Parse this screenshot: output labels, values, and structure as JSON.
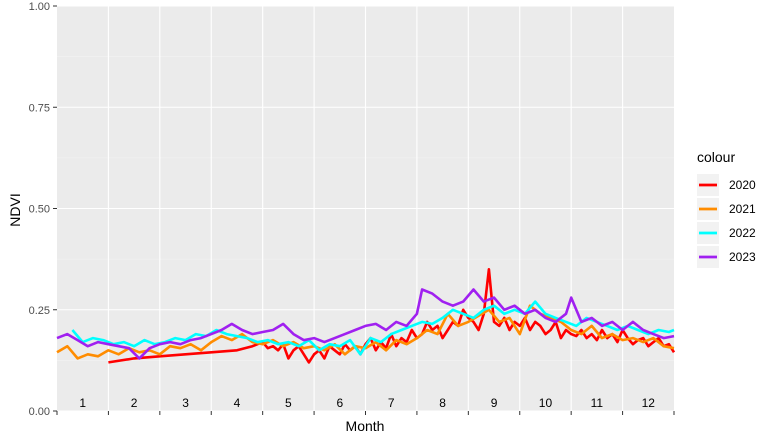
{
  "chart_data": {
    "type": "line",
    "xlabel": "Month",
    "ylabel": "NDVI",
    "xlim": [
      0,
      12
    ],
    "ylim": [
      0,
      1
    ],
    "y_ticks": [
      "0.00",
      "0.25",
      "0.50",
      "0.75",
      "1.00"
    ],
    "y_tick_values": [
      0,
      0.25,
      0.5,
      0.75,
      1.0
    ],
    "month_labels": [
      "1",
      "2",
      "3",
      "4",
      "5",
      "6",
      "7",
      "8",
      "9",
      "10",
      "11",
      "12"
    ],
    "grid": true,
    "legend": {
      "title": "colour",
      "position": "right"
    },
    "series": [
      {
        "name": "2020",
        "color": "#ff0000",
        "x": [
          1.0,
          1.5,
          2.0,
          2.5,
          3.0,
          3.5,
          3.8,
          4.0,
          4.1,
          4.2,
          4.3,
          4.4,
          4.5,
          4.6,
          4.7,
          4.8,
          4.9,
          5.0,
          5.1,
          5.2,
          5.3,
          5.4,
          5.5,
          5.6,
          5.7,
          5.8,
          5.9,
          6.0,
          6.1,
          6.2,
          6.3,
          6.4,
          6.5,
          6.6,
          6.7,
          6.8,
          6.9,
          7.0,
          7.1,
          7.2,
          7.3,
          7.4,
          7.5,
          7.6,
          7.7,
          7.8,
          7.9,
          8.0,
          8.1,
          8.2,
          8.3,
          8.4,
          8.5,
          8.6,
          8.7,
          8.8,
          8.9,
          9.0,
          9.1,
          9.2,
          9.3,
          9.4,
          9.5,
          9.6,
          9.7,
          9.8,
          9.9,
          10.0,
          10.1,
          10.2,
          10.3,
          10.4,
          10.5,
          10.6,
          10.7,
          10.8,
          10.9,
          11.0,
          11.1,
          11.2,
          11.3,
          11.4,
          11.5,
          11.6,
          11.7,
          11.8,
          11.9,
          12.0
        ],
        "y": [
          0.12,
          0.13,
          0.135,
          0.14,
          0.145,
          0.15,
          0.16,
          0.17,
          0.155,
          0.16,
          0.15,
          0.165,
          0.13,
          0.15,
          0.16,
          0.14,
          0.12,
          0.14,
          0.15,
          0.13,
          0.16,
          0.15,
          0.14,
          0.165,
          0.15,
          0.16,
          0.14,
          0.165,
          0.18,
          0.15,
          0.17,
          0.155,
          0.19,
          0.16,
          0.18,
          0.17,
          0.2,
          0.18,
          0.19,
          0.22,
          0.2,
          0.21,
          0.18,
          0.2,
          0.22,
          0.21,
          0.25,
          0.23,
          0.22,
          0.2,
          0.24,
          0.35,
          0.22,
          0.21,
          0.23,
          0.2,
          0.22,
          0.21,
          0.23,
          0.2,
          0.22,
          0.21,
          0.19,
          0.2,
          0.22,
          0.18,
          0.2,
          0.19,
          0.185,
          0.2,
          0.18,
          0.19,
          0.175,
          0.2,
          0.18,
          0.19,
          0.17,
          0.2,
          0.18,
          0.165,
          0.175,
          0.18,
          0.16,
          0.17,
          0.18,
          0.16,
          0.165,
          0.145
        ]
      },
      {
        "name": "2021",
        "color": "#ff8c00",
        "x": [
          0.0,
          0.2,
          0.4,
          0.6,
          0.8,
          1.0,
          1.2,
          1.4,
          1.6,
          1.8,
          2.0,
          2.2,
          2.4,
          2.6,
          2.8,
          3.0,
          3.2,
          3.4,
          3.6,
          3.8,
          4.0,
          4.2,
          4.4,
          4.6,
          4.8,
          5.0,
          5.2,
          5.4,
          5.6,
          5.8,
          6.0,
          6.2,
          6.4,
          6.6,
          6.8,
          7.0,
          7.2,
          7.4,
          7.6,
          7.8,
          8.0,
          8.2,
          8.4,
          8.6,
          8.8,
          9.0,
          9.2,
          9.4,
          9.6,
          9.8,
          10.0,
          10.2,
          10.4,
          10.6,
          10.8,
          11.0,
          11.2,
          11.4,
          11.6,
          11.8,
          12.0
        ],
        "y": [
          0.145,
          0.16,
          0.13,
          0.14,
          0.135,
          0.15,
          0.14,
          0.155,
          0.145,
          0.15,
          0.14,
          0.16,
          0.155,
          0.165,
          0.15,
          0.17,
          0.185,
          0.175,
          0.19,
          0.17,
          0.165,
          0.175,
          0.16,
          0.17,
          0.155,
          0.16,
          0.15,
          0.165,
          0.14,
          0.16,
          0.155,
          0.17,
          0.15,
          0.175,
          0.165,
          0.18,
          0.2,
          0.19,
          0.24,
          0.21,
          0.22,
          0.235,
          0.25,
          0.22,
          0.23,
          0.19,
          0.26,
          0.24,
          0.23,
          0.22,
          0.2,
          0.19,
          0.21,
          0.18,
          0.19,
          0.175,
          0.18,
          0.17,
          0.18,
          0.16,
          0.155
        ]
      },
      {
        "name": "2022",
        "color": "#00ffff",
        "x": [
          0.3,
          0.5,
          0.7,
          0.9,
          1.1,
          1.3,
          1.5,
          1.7,
          1.9,
          2.1,
          2.3,
          2.5,
          2.7,
          2.9,
          3.1,
          3.3,
          3.5,
          3.7,
          3.9,
          4.1,
          4.3,
          4.5,
          4.7,
          4.9,
          5.1,
          5.3,
          5.5,
          5.7,
          5.9,
          6.1,
          6.3,
          6.5,
          6.7,
          6.9,
          7.1,
          7.3,
          7.5,
          7.7,
          7.9,
          8.1,
          8.3,
          8.5,
          8.7,
          8.9,
          9.1,
          9.3,
          9.5,
          9.7,
          9.9,
          10.1,
          10.3,
          10.5,
          10.7,
          10.9,
          11.1,
          11.3,
          11.5,
          11.7,
          11.9,
          12.0
        ],
        "y": [
          0.2,
          0.17,
          0.18,
          0.175,
          0.165,
          0.17,
          0.16,
          0.175,
          0.165,
          0.17,
          0.18,
          0.175,
          0.19,
          0.185,
          0.2,
          0.19,
          0.185,
          0.18,
          0.17,
          0.175,
          0.165,
          0.17,
          0.16,
          0.175,
          0.15,
          0.165,
          0.16,
          0.175,
          0.14,
          0.18,
          0.17,
          0.19,
          0.2,
          0.21,
          0.22,
          0.215,
          0.23,
          0.25,
          0.24,
          0.23,
          0.25,
          0.26,
          0.24,
          0.25,
          0.24,
          0.27,
          0.24,
          0.23,
          0.22,
          0.21,
          0.23,
          0.22,
          0.21,
          0.2,
          0.21,
          0.2,
          0.19,
          0.2,
          0.195,
          0.2
        ]
      },
      {
        "name": "2023",
        "color": "#a020f0",
        "x": [
          0.0,
          0.2,
          0.4,
          0.6,
          0.8,
          1.0,
          1.2,
          1.4,
          1.6,
          1.8,
          2.0,
          2.2,
          2.4,
          2.6,
          2.8,
          3.0,
          3.2,
          3.4,
          3.6,
          3.8,
          4.0,
          4.2,
          4.4,
          4.6,
          4.8,
          5.0,
          5.2,
          5.4,
          5.6,
          5.8,
          6.0,
          6.2,
          6.4,
          6.6,
          6.8,
          7.0,
          7.1,
          7.3,
          7.5,
          7.7,
          7.9,
          8.1,
          8.3,
          8.5,
          8.7,
          8.9,
          9.1,
          9.3,
          9.5,
          9.7,
          9.9,
          10.0,
          10.2,
          10.4,
          10.6,
          10.8,
          11.0,
          11.2,
          11.4,
          11.6,
          11.8,
          12.0
        ],
        "y": [
          0.18,
          0.19,
          0.175,
          0.16,
          0.17,
          0.165,
          0.16,
          0.155,
          0.13,
          0.155,
          0.165,
          0.17,
          0.165,
          0.175,
          0.18,
          0.19,
          0.2,
          0.215,
          0.2,
          0.19,
          0.195,
          0.2,
          0.215,
          0.19,
          0.175,
          0.18,
          0.17,
          0.18,
          0.19,
          0.2,
          0.21,
          0.215,
          0.2,
          0.22,
          0.21,
          0.24,
          0.3,
          0.29,
          0.27,
          0.26,
          0.27,
          0.3,
          0.27,
          0.28,
          0.25,
          0.26,
          0.24,
          0.25,
          0.23,
          0.22,
          0.24,
          0.28,
          0.22,
          0.23,
          0.21,
          0.22,
          0.2,
          0.22,
          0.2,
          0.19,
          0.18,
          0.185
        ]
      }
    ]
  }
}
